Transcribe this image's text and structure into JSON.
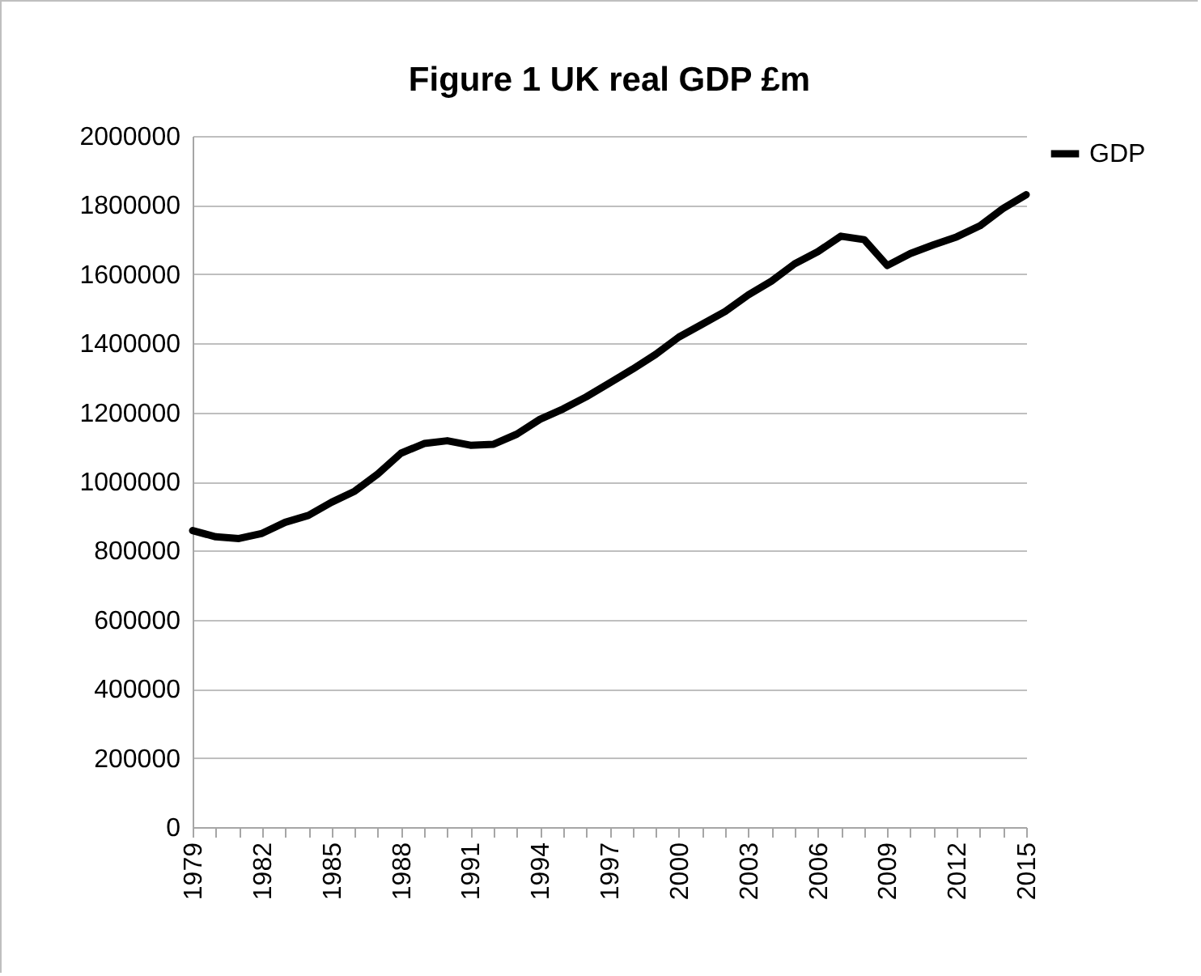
{
  "chart_data": {
    "type": "line",
    "title": "Figure 1 UK real GDP £m",
    "categories": [
      "1979",
      null,
      null,
      "1982",
      null,
      null,
      "1985",
      null,
      null,
      "1988",
      null,
      null,
      "1991",
      null,
      null,
      "1994",
      null,
      null,
      "1997",
      null,
      null,
      "2000",
      null,
      null,
      "2003",
      null,
      null,
      "2006",
      null,
      null,
      "2009",
      null,
      null,
      "2012",
      null,
      null,
      "2015"
    ],
    "series": [
      {
        "name": "GDP",
        "color": "#000000",
        "values": [
          858000,
          840000,
          835000,
          850000,
          882000,
          902000,
          940000,
          972000,
          1022000,
          1082000,
          1110000,
          1118000,
          1105000,
          1108000,
          1137000,
          1180000,
          1210000,
          1245000,
          1285000,
          1325000,
          1368000,
          1418000,
          1455000,
          1492000,
          1540000,
          1580000,
          1630000,
          1665000,
          1710000,
          1700000,
          1625000,
          1660000,
          1685000,
          1708000,
          1740000,
          1790000,
          1830000
        ]
      }
    ],
    "ylim": [
      0,
      2000000
    ],
    "yticks": [
      0,
      200000,
      400000,
      600000,
      800000,
      1000000,
      1200000,
      1400000,
      1600000,
      1800000,
      2000000
    ],
    "grid": "y",
    "legend": "right",
    "marker": "none",
    "line_style": "solid"
  }
}
